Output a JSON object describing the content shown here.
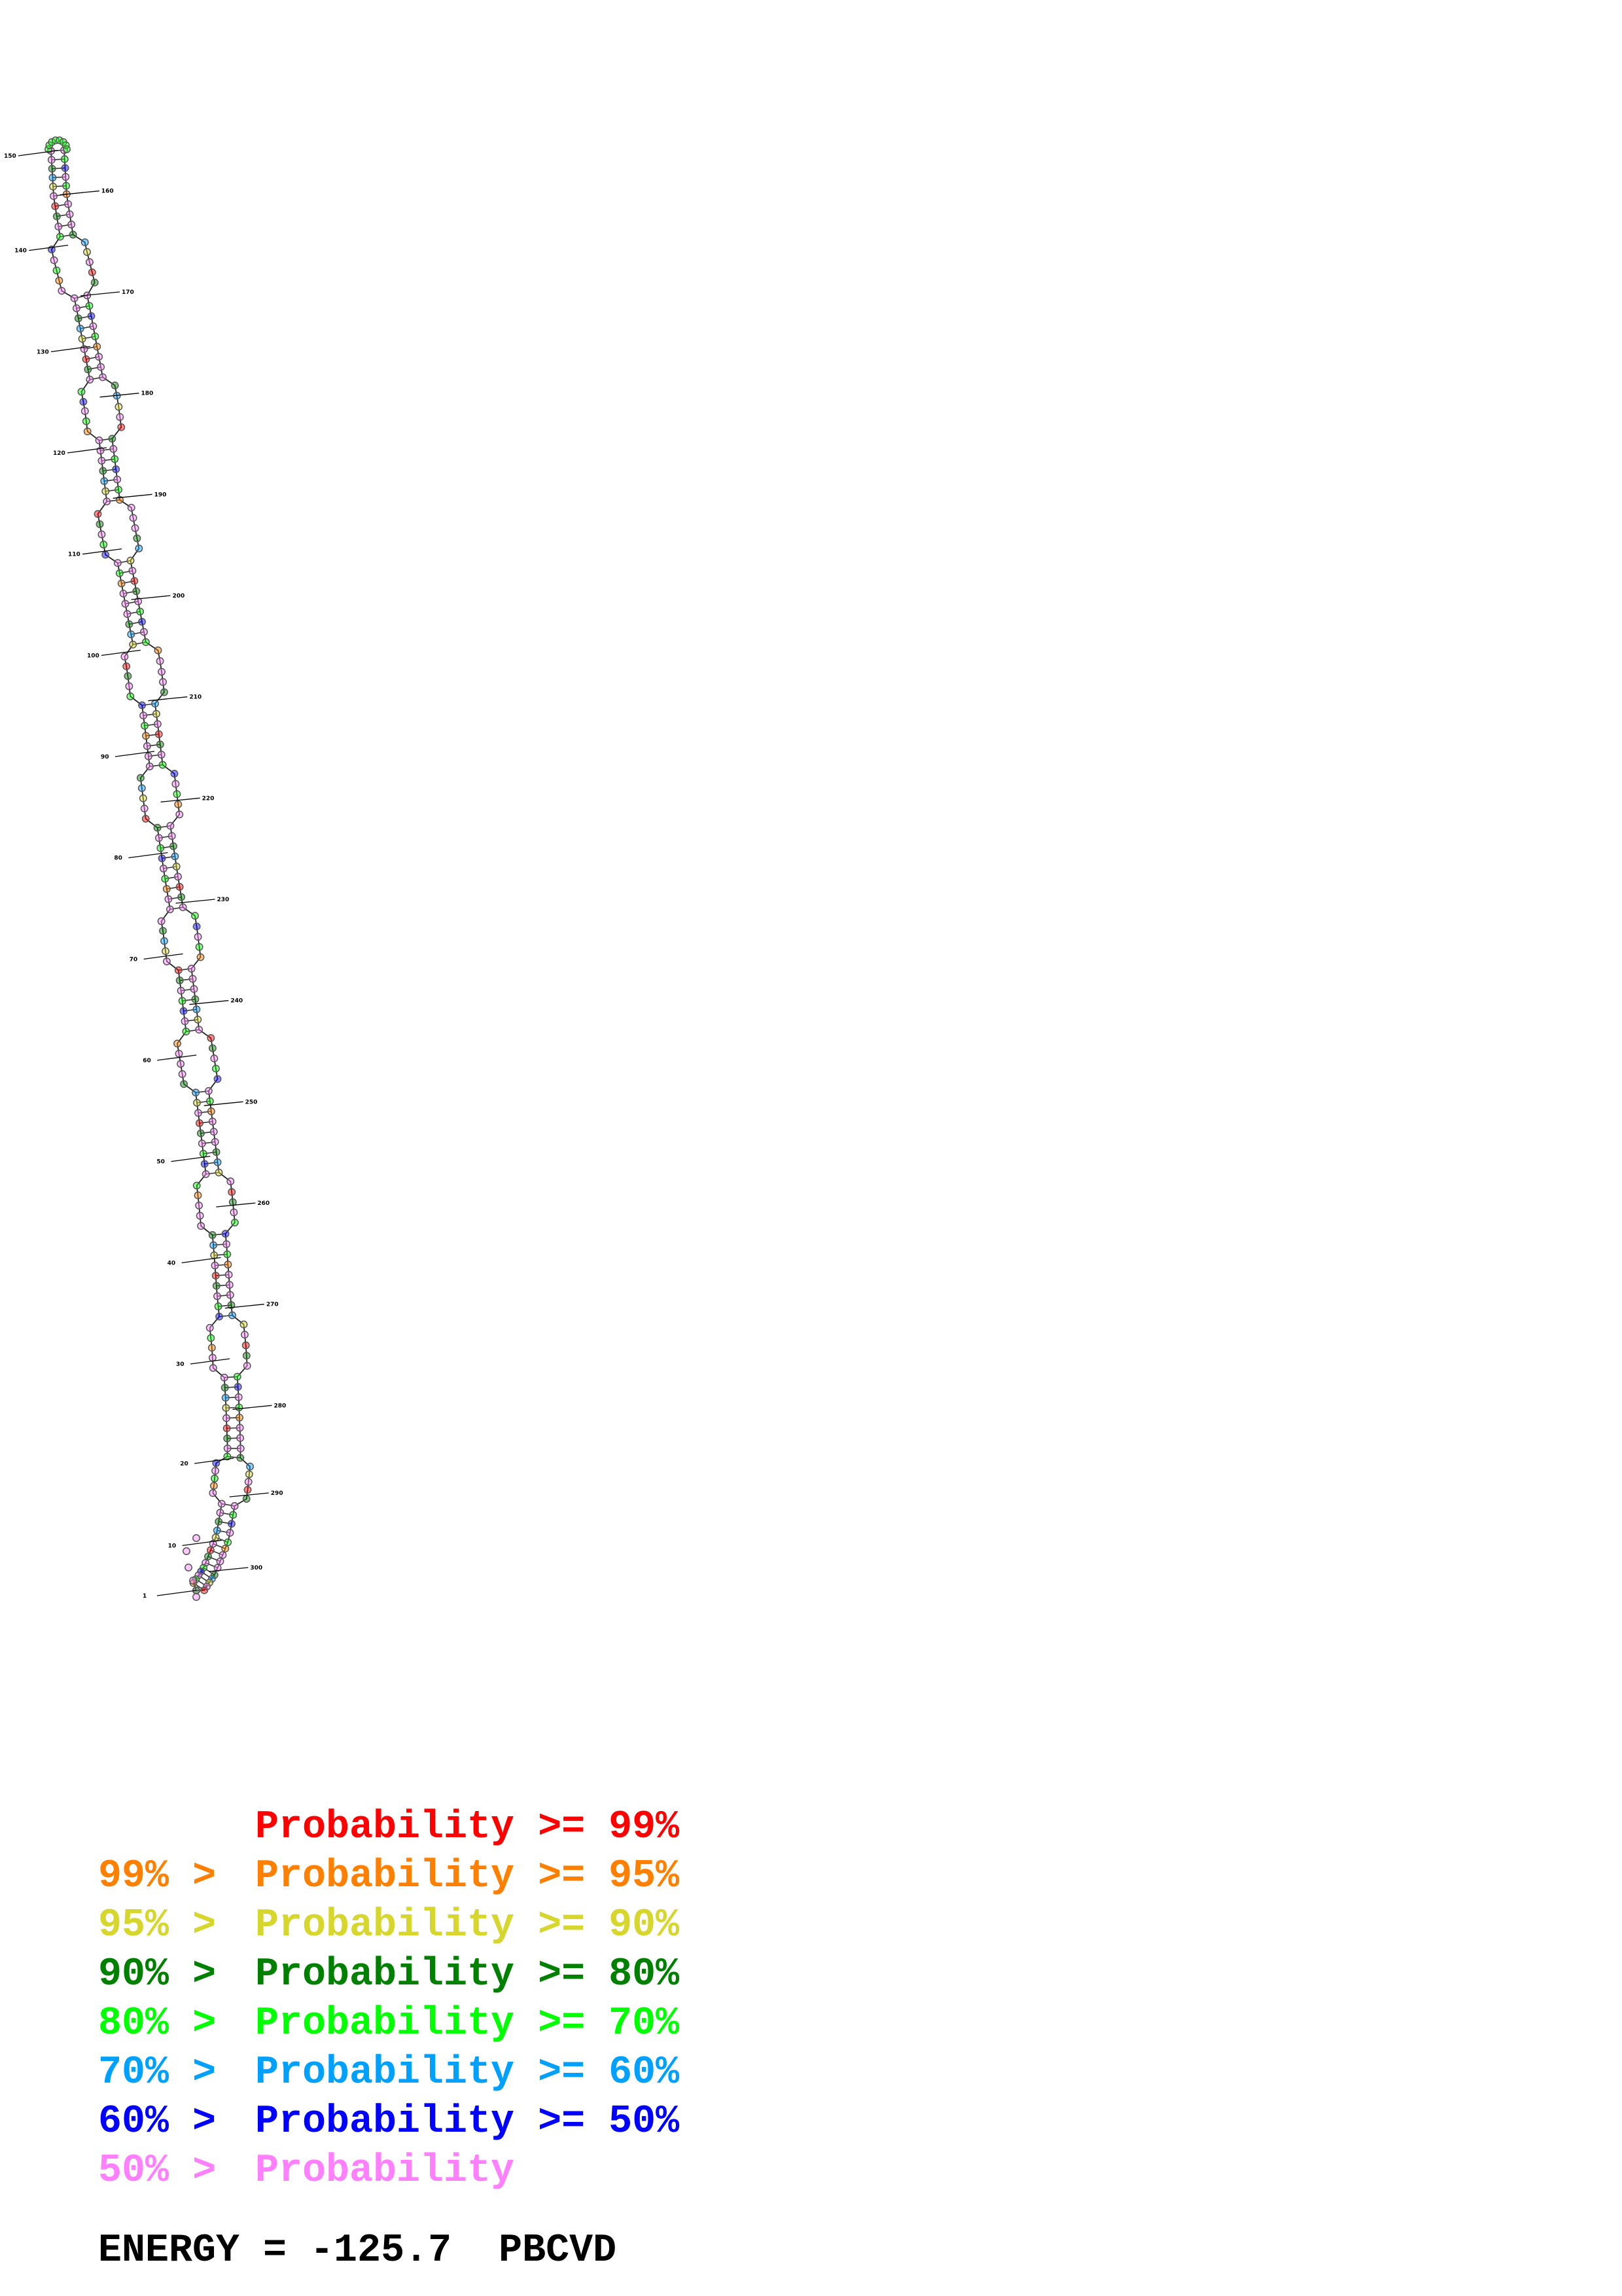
{
  "legend": {
    "rows": [
      {
        "prefix": "",
        "middle": "Probability >= 99%",
        "color": "#ff0000",
        "class": "p99"
      },
      {
        "prefix": "99% >",
        "middle": "Probability >= 95%",
        "color": "#ff8000",
        "class": "p95"
      },
      {
        "prefix": "95% >",
        "middle": "Probability >= 90%",
        "color": "#d6d62c",
        "class": "p90"
      },
      {
        "prefix": "90% >",
        "middle": "Probability >= 80%",
        "color": "#008000",
        "class": "p80"
      },
      {
        "prefix": "80% >",
        "middle": "Probability >= 70%",
        "color": "#00ff00",
        "class": "p70"
      },
      {
        "prefix": "70% >",
        "middle": "Probability >= 60%",
        "color": "#00a0ff",
        "class": "p60"
      },
      {
        "prefix": "60% >",
        "middle": "Probability >= 50%",
        "color": "#0000ff",
        "class": "p50"
      },
      {
        "prefix": "50% >",
        "middle": "Probability",
        "color": "#ff80ff",
        "class": "plow"
      }
    ]
  },
  "energy": {
    "text": "ENERGY = -125.7  PBCVD"
  },
  "structure": {
    "nucleotide_labels": [
      "150",
      "160",
      "140",
      "170",
      "130",
      "180",
      "120",
      "190",
      "110",
      "200",
      "100",
      "210",
      "90",
      "220",
      "80",
      "230",
      "70",
      "240",
      "60",
      "250",
      "50",
      "260",
      "40",
      "270",
      "30",
      "280",
      "20",
      "290",
      "10",
      "300",
      "1"
    ]
  }
}
